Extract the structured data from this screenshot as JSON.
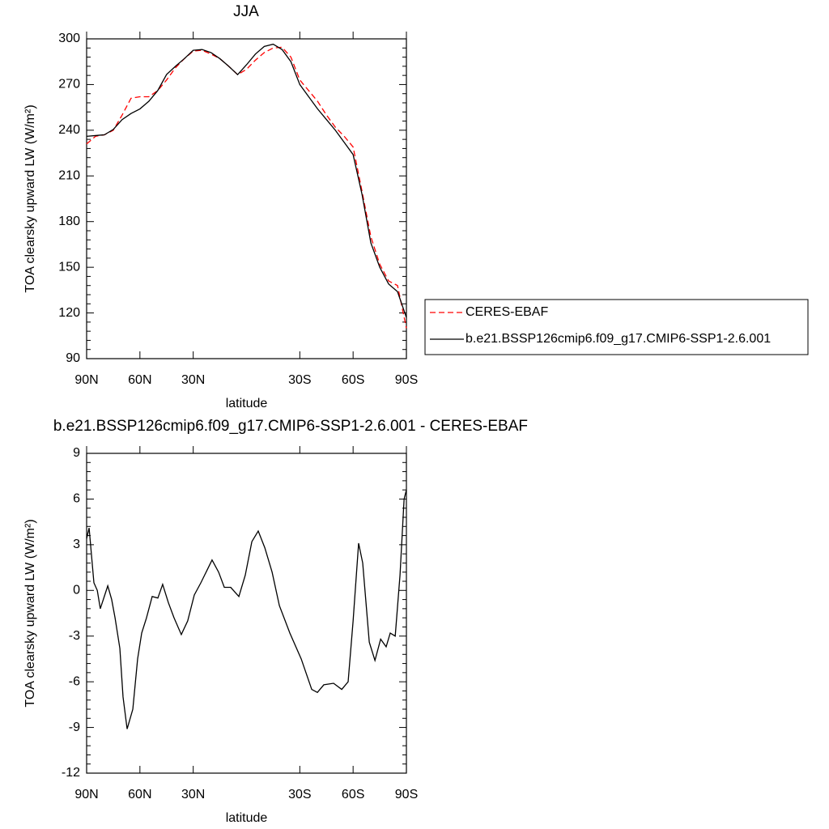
{
  "chart_data": [
    {
      "type": "line",
      "title": "JJA",
      "xlabel": "latitude",
      "ylabel": "TOA clearsky upward LW (W/m²)",
      "x": [
        90,
        85,
        80,
        75,
        70,
        65,
        60,
        55,
        50,
        45,
        40,
        35,
        30,
        25,
        20,
        15,
        10,
        5,
        0,
        -5,
        -10,
        -15,
        -20,
        -25,
        -30,
        -35,
        -40,
        -45,
        -50,
        -55,
        -60,
        -65,
        -70,
        -75,
        -80,
        -85,
        -90
      ],
      "series": [
        {
          "name": "CERES-EBAF",
          "color": "#ff0000",
          "style": "dashed",
          "values": [
            231,
            236,
            237,
            240,
            250,
            261,
            262,
            262,
            266,
            273,
            281,
            287,
            292,
            292.5,
            290,
            287,
            282,
            276.5,
            280,
            286,
            291,
            294,
            294.5,
            288,
            273,
            266,
            259,
            250,
            242,
            236,
            229,
            200,
            170,
            152,
            141,
            138,
            110
          ]
        },
        {
          "name": "b.e21.BSSP126cmip6.f09_g17.CMIP6-SSP1-2.6.001",
          "color": "#000000",
          "style": "solid",
          "values": [
            236,
            236.5,
            237,
            240.5,
            247,
            251,
            254,
            259,
            266,
            276.6,
            282,
            287,
            292.5,
            293,
            291,
            287,
            282,
            276.5,
            283,
            290,
            295,
            296.5,
            293,
            285,
            270,
            262,
            254,
            247,
            240,
            232,
            224,
            198,
            166,
            150,
            139,
            134,
            117
          ]
        }
      ],
      "xlim": [
        90,
        -90
      ],
      "xticks": [
        {
          "value": 90,
          "label": "90N"
        },
        {
          "value": 60,
          "label": "60N"
        },
        {
          "value": 30,
          "label": "30N"
        },
        {
          "value": -30,
          "label": "30S"
        },
        {
          "value": -60,
          "label": "60S"
        },
        {
          "value": -90,
          "label": "90S"
        }
      ],
      "ylim": [
        90,
        300
      ],
      "yticks": [
        90,
        120,
        150,
        180,
        210,
        240,
        270,
        300
      ],
      "legend": "right"
    },
    {
      "type": "line",
      "title": "b.e21.BSSP126cmip6.f09_g17.CMIP6-SSP1-2.6.001 - CERES-EBAF",
      "xlabel": "latitude",
      "ylabel": "TOA clearsky upward LW (W/m²)",
      "x": [
        90,
        88.6,
        85.9,
        84,
        82.3,
        78.1,
        75.9,
        74,
        71.3,
        69.5,
        67.2,
        64,
        61.3,
        59,
        56.3,
        53.1,
        49.9,
        47.2,
        44,
        40.8,
        36.7,
        33.1,
        29.4,
        25.7,
        19.4,
        15.7,
        12.5,
        8.9,
        4.3,
        0.7,
        -3,
        -6.6,
        -10.3,
        -14.4,
        -18.5,
        -24.4,
        -30.8,
        -36.7,
        -39.9,
        -43.5,
        -49,
        -53.6,
        -57.2,
        -60,
        -63.1,
        -65.4,
        -69.1,
        -72.3,
        -75.5,
        -78.6,
        -80.9,
        -83.7,
        -86.4,
        -88.7,
        -90
      ],
      "values": [
        3.4,
        4.1,
        0.5,
        0,
        -1.2,
        0.3,
        -0.6,
        -1.8,
        -3.8,
        -7,
        -9.1,
        -7.8,
        -4.5,
        -2.8,
        -1.8,
        -0.4,
        -0.5,
        0.4,
        -0.8,
        -1.8,
        -2.9,
        -2,
        -0.3,
        0.5,
        2,
        1.2,
        0.2,
        0.2,
        -0.4,
        1,
        3.2,
        3.9,
        2.8,
        1.2,
        -1,
        -2.8,
        -4.5,
        -6.5,
        -6.7,
        -6.2,
        -6.1,
        -6.5,
        -6,
        -2,
        3.1,
        1.8,
        -3.4,
        -4.6,
        -3.2,
        -3.7,
        -2.8,
        -3,
        1,
        6,
        6.6
      ],
      "color": "#000000",
      "xlim": [
        90,
        -90
      ],
      "xticks": [
        {
          "value": 90,
          "label": "90N"
        },
        {
          "value": 60,
          "label": "60N"
        },
        {
          "value": 30,
          "label": "30N"
        },
        {
          "value": -30,
          "label": "30S"
        },
        {
          "value": -60,
          "label": "60S"
        },
        {
          "value": -90,
          "label": "90S"
        }
      ],
      "ylim": [
        -12,
        9
      ],
      "yticks": [
        -12,
        -9,
        -6,
        -3,
        0,
        3,
        6,
        9
      ]
    }
  ]
}
